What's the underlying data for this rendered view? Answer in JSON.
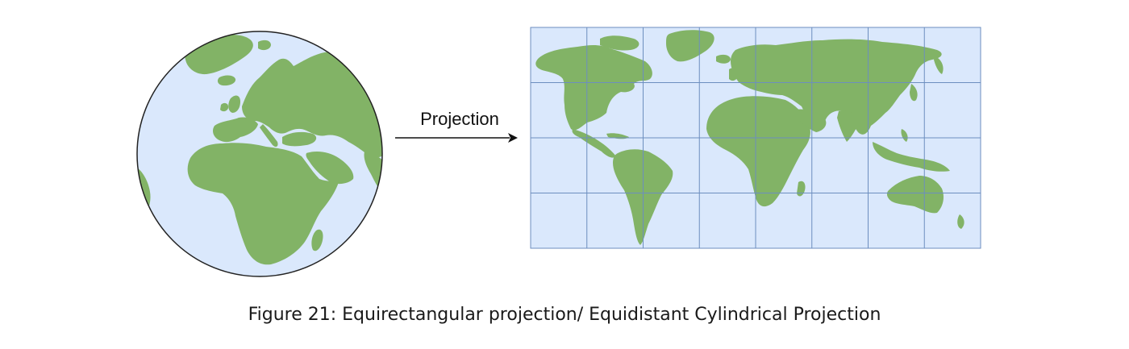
{
  "arrow_label": "Projection",
  "caption": "Figure 21: Equirectangular projection/ Equidistant Cylindrical Projection",
  "colors": {
    "ocean": "#dae8fc",
    "land": "#82b366",
    "grid": "#6c8ebf",
    "globe_outline": "#222222",
    "arrow": "#111111"
  },
  "icons": {
    "globe": "globe-earth-africa-europe-view",
    "flat_map": "world-map-equirectangular",
    "arrow": "arrow-right"
  },
  "map_grid": {
    "columns": 8,
    "rows": 4
  }
}
